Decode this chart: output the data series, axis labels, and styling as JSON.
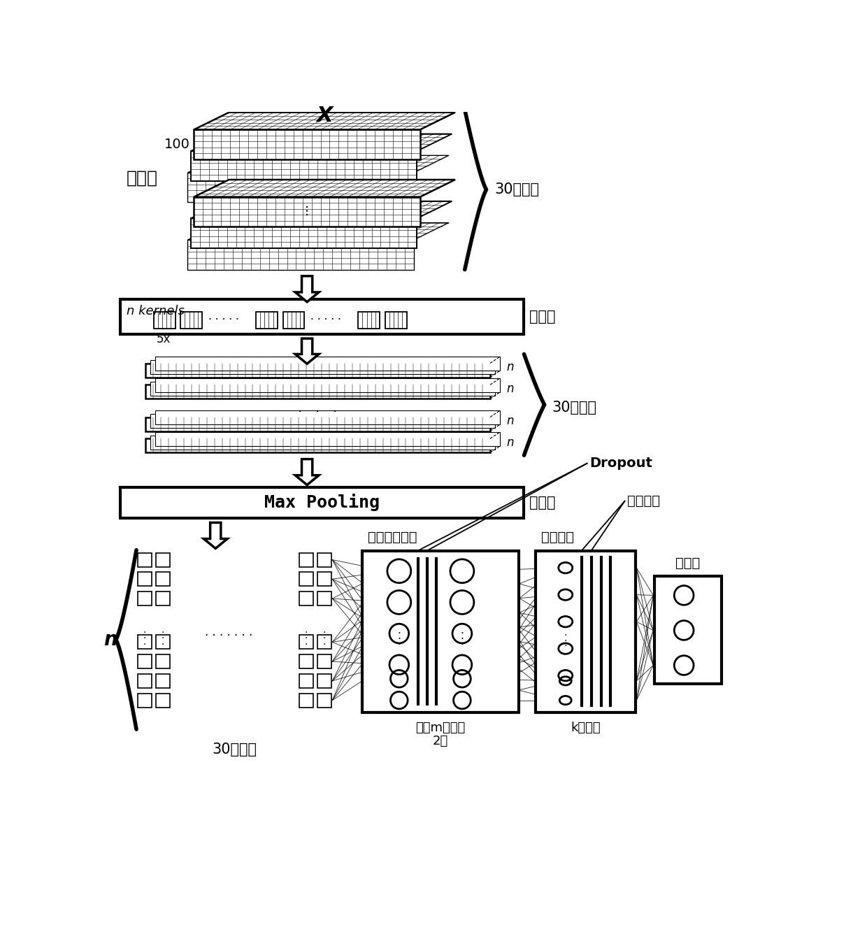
{
  "bg_color": "#ffffff",
  "title_x": "X",
  "label_input": "输入层",
  "label_100": "100",
  "label_30s_top": "30个句子",
  "label_conv": "卷积层",
  "label_n_kernels": "n kernels",
  "label_5x": "5x",
  "label_30s_mid": "30个句子",
  "label_pool": "池化层",
  "label_maxpool": "Max Pooling",
  "label_lstm": "长短期记忆层",
  "label_fc": "全链接层",
  "label_class": "分类层",
  "label_dropout": "Dropout",
  "label_activation": "激活函数",
  "label_n_brace": "n",
  "label_m_nodes": "每层m个节点",
  "label_2layers": "2层",
  "label_k_nodes": "k个节点",
  "label_30s_bot": "30个句子"
}
